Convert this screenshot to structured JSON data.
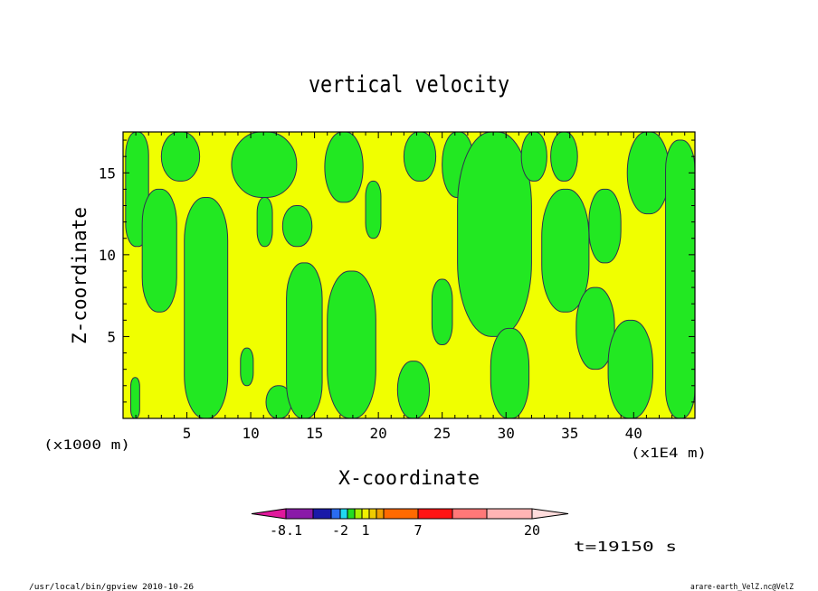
{
  "chart_data": {
    "type": "heatmap",
    "title": "vertical velocity",
    "xlabel": "X-coordinate",
    "ylabel": "Z-coordinate",
    "x_unit": "(x1E4 m)",
    "y_unit": "(x1000 m)",
    "x_ticks": [
      5,
      10,
      15,
      20,
      25,
      30,
      35,
      40
    ],
    "y_ticks": [
      5,
      10,
      15
    ],
    "xlim": [
      0,
      44.8
    ],
    "ylim": [
      0,
      17.5
    ],
    "colorbar": {
      "colors": [
        "#e0189c",
        "#8a1aa8",
        "#1a1aa8",
        "#2a6cf0",
        "#20d8f0",
        "#22dd22",
        "#a8f000",
        "#f0f000",
        "#f0cc00",
        "#f0a000",
        "#ff6a00",
        "#ff1414",
        "#ff7878",
        "#ffb4b4",
        "#ffdcdc"
      ],
      "labels": [
        "-8.1",
        "-2",
        "1",
        "7",
        "20"
      ]
    },
    "time_label": "t=19150 s",
    "green_regions": [
      {
        "x0": 0.2,
        "x1": 2.0,
        "y0": 10.5,
        "y1": 17.5
      },
      {
        "x0": 0.6,
        "x1": 1.3,
        "y0": 0.0,
        "y1": 2.5
      },
      {
        "x0": 1.5,
        "x1": 4.2,
        "y0": 6.5,
        "y1": 14.0
      },
      {
        "x0": 3.0,
        "x1": 6.0,
        "y0": 14.5,
        "y1": 17.5
      },
      {
        "x0": 4.8,
        "x1": 8.2,
        "y0": 0.0,
        "y1": 13.5
      },
      {
        "x0": 8.5,
        "x1": 13.6,
        "y0": 13.5,
        "y1": 17.5
      },
      {
        "x0": 9.2,
        "x1": 10.2,
        "y0": 2.0,
        "y1": 4.3
      },
      {
        "x0": 10.5,
        "x1": 11.7,
        "y0": 10.5,
        "y1": 13.5
      },
      {
        "x0": 11.2,
        "x1": 13.2,
        "y0": 0.0,
        "y1": 2.0
      },
      {
        "x0": 12.8,
        "x1": 15.6,
        "y0": 0.0,
        "y1": 9.5
      },
      {
        "x0": 12.5,
        "x1": 14.8,
        "y0": 10.5,
        "y1": 13.0
      },
      {
        "x0": 15.8,
        "x1": 18.8,
        "y0": 13.2,
        "y1": 17.5
      },
      {
        "x0": 16.0,
        "x1": 19.8,
        "y0": 0.0,
        "y1": 9.0
      },
      {
        "x0": 19.0,
        "x1": 20.2,
        "y0": 11.0,
        "y1": 14.5
      },
      {
        "x0": 21.5,
        "x1": 24.0,
        "y0": 0.0,
        "y1": 3.5
      },
      {
        "x0": 22.0,
        "x1": 24.5,
        "y0": 14.5,
        "y1": 17.5
      },
      {
        "x0": 25.0,
        "x1": 27.5,
        "y0": 13.5,
        "y1": 17.5
      },
      {
        "x0": 24.2,
        "x1": 25.8,
        "y0": 4.5,
        "y1": 8.5
      },
      {
        "x0": 26.2,
        "x1": 32.0,
        "y0": 5.0,
        "y1": 17.5
      },
      {
        "x0": 28.8,
        "x1": 31.8,
        "y0": 0.0,
        "y1": 5.5
      },
      {
        "x0": 31.2,
        "x1": 33.2,
        "y0": 14.5,
        "y1": 17.5
      },
      {
        "x0": 32.8,
        "x1": 36.5,
        "y0": 6.5,
        "y1": 14.0
      },
      {
        "x0": 33.5,
        "x1": 35.6,
        "y0": 14.5,
        "y1": 17.5
      },
      {
        "x0": 35.5,
        "x1": 38.5,
        "y0": 3.0,
        "y1": 8.0
      },
      {
        "x0": 36.5,
        "x1": 39.0,
        "y0": 9.5,
        "y1": 14.0
      },
      {
        "x0": 38.0,
        "x1": 41.5,
        "y0": 0.0,
        "y1": 6.0
      },
      {
        "x0": 39.5,
        "x1": 42.8,
        "y0": 12.5,
        "y1": 17.5
      },
      {
        "x0": 42.5,
        "x1": 44.8,
        "y0": 0.0,
        "y1": 17.0
      }
    ]
  },
  "footer": {
    "left": "/usr/local/bin/gpview  2010-10-26",
    "right": "arare-earth_VelZ.nc@VelZ"
  }
}
